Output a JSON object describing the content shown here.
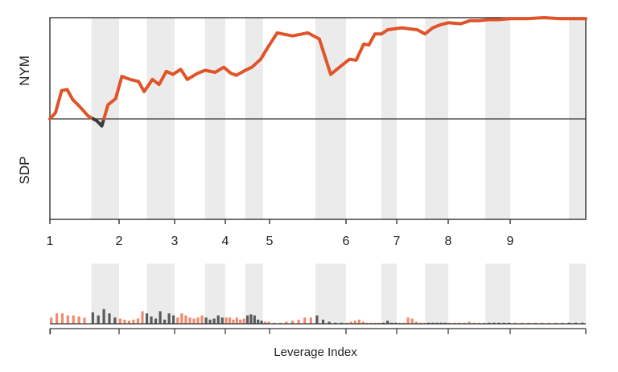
{
  "chart_data": {
    "type": "line",
    "xlabel": "Leverage Index",
    "ylabel_top": "NYM",
    "ylabel_bottom": "SDP",
    "x_ticks": [
      "1",
      "2",
      "3",
      "4",
      "5",
      "6",
      "7",
      "8",
      "9"
    ],
    "x_tick_values": [
      1,
      2,
      3,
      4,
      5,
      6,
      7,
      8,
      9
    ],
    "x_range": [
      1,
      9.9
    ],
    "y_range": [
      -1,
      1
    ],
    "baseline": 0,
    "grid": false,
    "legend": "none",
    "shaded_bands": [
      [
        1.6,
        2.0
      ],
      [
        2.5,
        3.0
      ],
      [
        3.6,
        4.0
      ],
      [
        4.45,
        4.85
      ],
      [
        5.6,
        6.0
      ],
      [
        6.7,
        7.0
      ],
      [
        7.55,
        8.0
      ],
      [
        8.6,
        9.0
      ],
      [
        9.7,
        9.9
      ]
    ],
    "series": [
      {
        "x": [
          1.0,
          1.08,
          1.17,
          1.25,
          1.33,
          1.42,
          1.55,
          1.68,
          1.75,
          1.84,
          1.95,
          2.05,
          2.2,
          2.35,
          2.45,
          2.6,
          2.72,
          2.85,
          2.97,
          3.12,
          3.25,
          3.45,
          3.6,
          3.8,
          3.97,
          4.13,
          4.25,
          4.45,
          4.6,
          4.8,
          4.95,
          5.1,
          5.3,
          5.5,
          5.65,
          5.8,
          5.93,
          6.07,
          6.2,
          6.35,
          6.45,
          6.57,
          6.7,
          6.82,
          6.95,
          7.1,
          7.25,
          7.4,
          7.55,
          7.7,
          7.85,
          8.0,
          8.2,
          8.35,
          8.5,
          8.65,
          8.8,
          9.0,
          9.2,
          9.4,
          9.6,
          9.75,
          9.9
        ],
        "y": [
          0.0,
          0.06,
          0.28,
          0.29,
          0.19,
          0.13,
          0.03,
          -0.02,
          -0.07,
          0.14,
          0.2,
          0.42,
          0.39,
          0.37,
          0.27,
          0.39,
          0.34,
          0.47,
          0.44,
          0.49,
          0.39,
          0.45,
          0.48,
          0.46,
          0.51,
          0.45,
          0.43,
          0.48,
          0.51,
          0.59,
          0.7,
          0.85,
          0.82,
          0.85,
          0.79,
          0.44,
          0.52,
          0.59,
          0.58,
          0.74,
          0.73,
          0.84,
          0.84,
          0.88,
          0.89,
          0.9,
          0.89,
          0.88,
          0.84,
          0.9,
          0.93,
          0.95,
          0.94,
          0.97,
          0.97,
          0.98,
          0.98,
          0.99,
          0.99,
          1.0,
          0.99,
          0.99,
          0.99
        ],
        "positive_color": "#e0542a",
        "negative_color": "#3b3b3b"
      }
    ],
    "volume_bars": {
      "x": [
        1.02,
        1.1,
        1.18,
        1.26,
        1.34,
        1.42,
        1.5,
        1.62,
        1.7,
        1.78,
        1.86,
        1.94,
        2.02,
        2.1,
        2.18,
        2.26,
        2.34,
        2.42,
        2.5,
        2.58,
        2.66,
        2.74,
        2.82,
        2.9,
        2.98,
        3.06,
        3.14,
        3.22,
        3.3,
        3.38,
        3.46,
        3.54,
        3.62,
        3.7,
        3.78,
        3.86,
        3.94,
        4.02,
        4.1,
        4.18,
        4.26,
        4.34,
        4.42,
        4.5,
        4.58,
        4.66,
        4.74,
        4.82,
        4.9,
        4.98,
        5.06,
        5.14,
        5.22,
        5.3,
        5.38,
        5.46,
        5.54,
        5.62,
        5.7,
        5.78,
        5.86,
        5.94,
        6.02,
        6.1,
        6.18,
        6.26,
        6.34,
        6.42,
        6.5,
        6.58,
        6.66,
        6.74,
        6.82,
        6.9,
        6.98,
        7.06,
        7.14,
        7.22,
        7.3,
        7.38,
        7.46,
        7.54,
        7.62,
        7.7,
        7.78,
        7.86,
        7.94,
        8.02,
        8.1,
        8.18,
        8.26,
        8.34,
        8.42,
        8.5,
        8.58,
        8.66,
        8.74,
        8.82,
        8.9,
        8.98,
        9.06,
        9.14,
        9.22,
        9.3,
        9.38,
        9.46,
        9.54,
        9.62,
        9.7,
        9.78,
        9.86
      ],
      "v": [
        0.3,
        0.5,
        0.5,
        0.4,
        0.4,
        0.35,
        0.3,
        0.55,
        0.4,
        0.7,
        0.5,
        0.3,
        0.25,
        0.2,
        0.15,
        0.2,
        0.25,
        0.6,
        0.5,
        0.35,
        0.25,
        0.6,
        0.2,
        0.5,
        0.4,
        0.3,
        0.5,
        0.4,
        0.3,
        0.25,
        0.3,
        0.4,
        0.3,
        0.2,
        0.25,
        0.4,
        0.3,
        0.3,
        0.3,
        0.2,
        0.3,
        0.2,
        0.25,
        0.4,
        0.45,
        0.4,
        0.2,
        0.15,
        0.1,
        0.1,
        0.05,
        0.05,
        0.1,
        0.15,
        0.2,
        0.3,
        0.3,
        0.4,
        0.2,
        0.1,
        0.05,
        0.05,
        0.05,
        0.1,
        0.15,
        0.2,
        0.1,
        0.05,
        0.05,
        0.05,
        0.05,
        0.05,
        0.15,
        0.05,
        0.05,
        0.05,
        0.05,
        0.3,
        0.25,
        0.1,
        0.05,
        0.05,
        0.05,
        0.05,
        0.05,
        0.05,
        0.05,
        0.05,
        0.05,
        0.05,
        0.05,
        0.1,
        0.05,
        0.05,
        0.05,
        0.05,
        0.05,
        0.05,
        0.05,
        0.05,
        0.05,
        0.05,
        0.05,
        0.05,
        0.05,
        0.05,
        0.05,
        0.05,
        0.05,
        0.05,
        0.05
      ],
      "colors": [
        "#f08a6e",
        "#5a5a5a"
      ]
    }
  }
}
